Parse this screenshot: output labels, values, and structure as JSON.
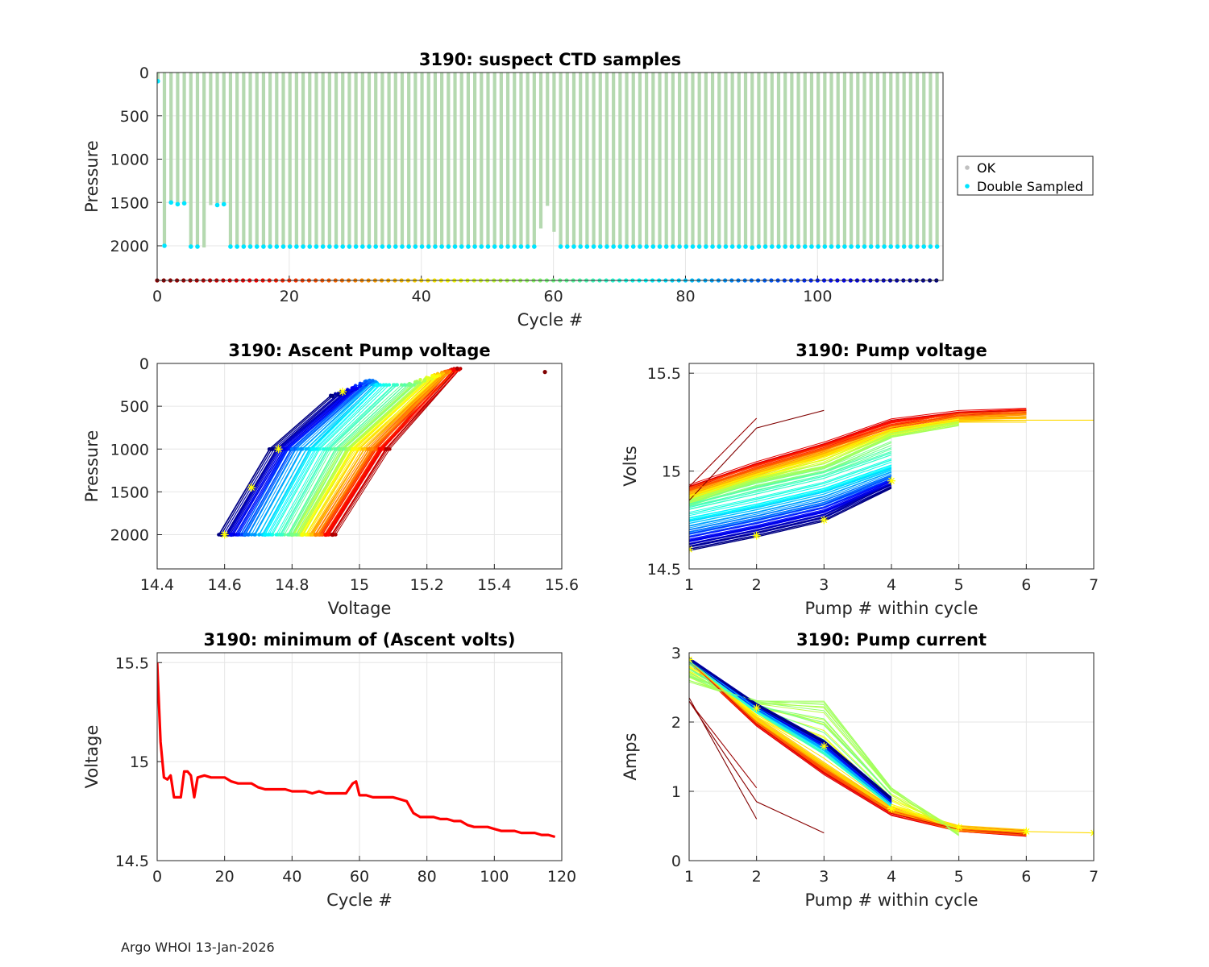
{
  "footer": "Argo WHOI 13-Jan-2026",
  "chart_data": [
    {
      "id": "ctd",
      "type": "scatter",
      "title": "3190: suspect CTD samples",
      "xlabel": "Cycle #",
      "ylabel": "Pressure",
      "xlim": [
        0,
        119
      ],
      "ylim": [
        0,
        2400
      ],
      "y_reversed": true,
      "xticks": [
        "0",
        "20",
        "40",
        "60",
        "80",
        "100"
      ],
      "yticks": [
        "0",
        "500",
        "1000",
        "1500",
        "2000"
      ],
      "legend": {
        "placement": "outside-right",
        "entries": [
          {
            "label": "OK",
            "color": "#c0c0c0"
          },
          {
            "label": "Double Sampled",
            "color": "#00e5ff"
          }
        ]
      },
      "ok_profile_color": "#b5d9b0",
      "double_sampled_color": "#00e5ff",
      "profile_max_pressure": {
        "cycles": [
          0,
          1,
          2,
          3,
          4,
          5,
          6,
          7,
          8,
          9,
          10,
          11,
          12,
          13,
          14,
          15,
          16,
          17,
          18,
          19,
          20,
          21,
          22,
          23,
          24,
          25,
          26,
          27,
          28,
          29,
          30,
          31,
          32,
          33,
          34,
          35,
          36,
          37,
          38,
          39,
          40,
          41,
          42,
          43,
          44,
          45,
          46,
          47,
          48,
          49,
          50,
          51,
          52,
          53,
          54,
          55,
          56,
          57,
          58,
          59,
          60,
          61,
          62,
          63,
          64,
          65,
          66,
          67,
          68,
          69,
          70,
          71,
          72,
          73,
          74,
          75,
          76,
          77,
          78,
          79,
          80,
          81,
          82,
          83,
          84,
          85,
          86,
          87,
          88,
          89,
          90,
          91,
          92,
          93,
          94,
          95,
          96,
          97,
          98,
          99,
          100,
          101,
          102,
          103,
          104,
          105,
          106,
          107,
          108,
          109,
          110,
          111,
          112,
          113,
          114,
          115,
          116,
          117,
          118
        ],
        "pressure": [
          100,
          2000,
          1500,
          1520,
          1510,
          2010,
          2010,
          2020,
          1530,
          1530,
          1520,
          2010,
          2010,
          2010,
          2010,
          2010,
          2010,
          2010,
          2010,
          2010,
          2010,
          2010,
          2010,
          2010,
          2010,
          2010,
          2010,
          2010,
          2010,
          2010,
          2010,
          2010,
          2010,
          2010,
          2010,
          2010,
          2010,
          2010,
          2010,
          2010,
          2010,
          2010,
          2010,
          2010,
          2010,
          2010,
          2010,
          2010,
          2010,
          2010,
          2010,
          2010,
          2010,
          2010,
          2010,
          2010,
          2010,
          2010,
          1800,
          1540,
          1840,
          2010,
          2010,
          2010,
          2010,
          2010,
          2010,
          2010,
          2010,
          2010,
          2010,
          2010,
          2010,
          2010,
          2010,
          2010,
          2010,
          2010,
          2010,
          2010,
          2010,
          2010,
          2010,
          2010,
          2010,
          2010,
          2010,
          2010,
          2010,
          2010,
          2020,
          2010,
          2010,
          2010,
          2010,
          2010,
          2010,
          2010,
          2010,
          2010,
          2010,
          2010,
          2010,
          2010,
          2010,
          2010,
          2010,
          2010,
          2010,
          2010,
          2010,
          2010,
          2010,
          2010,
          2010,
          2010,
          2010,
          2010,
          2010
        ],
        "double_sampled": [
          1,
          1,
          1,
          1,
          1,
          1,
          1,
          0,
          0,
          1,
          1,
          1,
          1,
          1,
          1,
          1,
          1,
          1,
          1,
          1,
          1,
          1,
          1,
          1,
          1,
          1,
          1,
          1,
          1,
          1,
          1,
          1,
          1,
          1,
          1,
          1,
          1,
          1,
          1,
          1,
          1,
          1,
          1,
          1,
          1,
          1,
          1,
          1,
          1,
          1,
          1,
          1,
          1,
          1,
          1,
          1,
          1,
          1,
          0,
          0,
          0,
          1,
          1,
          1,
          1,
          1,
          1,
          1,
          1,
          1,
          1,
          1,
          1,
          1,
          1,
          1,
          1,
          1,
          1,
          1,
          1,
          1,
          1,
          1,
          1,
          1,
          1,
          1,
          1,
          1,
          1,
          1,
          1,
          1,
          1,
          1,
          1,
          1,
          1,
          1,
          1,
          1,
          1,
          1,
          1,
          1,
          1,
          1,
          1,
          1,
          1,
          1,
          1,
          1,
          1,
          1,
          1,
          1,
          1
        ]
      },
      "cycle_marker_pressure": 2400
    },
    {
      "id": "ascent",
      "type": "line",
      "title": "3190: Ascent Pump voltage",
      "xlabel": "Voltage",
      "ylabel": "Pressure",
      "xlim": [
        14.4,
        15.6
      ],
      "ylim": [
        0,
        2400
      ],
      "y_reversed": true,
      "xticks": [
        "14.4",
        "14.6",
        "14.8",
        "15",
        "15.2",
        "15.4",
        "15.6"
      ],
      "yticks": [
        "0",
        "500",
        "1000",
        "1500",
        "2000"
      ],
      "series": [
        {
          "cycle": 0,
          "x": [
            15.55
          ],
          "y": [
            100
          ]
        },
        {
          "cycle": 5,
          "x": [
            14.92,
            15.08,
            15.29
          ],
          "y": [
            2000,
            1000,
            60
          ]
        },
        {
          "cycle": 15,
          "x": [
            14.9,
            15.06,
            15.28
          ],
          "y": [
            2000,
            1000,
            80
          ]
        },
        {
          "cycle": 30,
          "x": [
            14.87,
            15.03,
            15.26
          ],
          "y": [
            2000,
            1000,
            100
          ]
        },
        {
          "cycle": 45,
          "x": [
            14.83,
            14.98,
            15.22
          ],
          "y": [
            2000,
            1000,
            150
          ]
        },
        {
          "cycle": 60,
          "x": [
            14.8,
            14.94,
            15.15
          ],
          "y": [
            2000,
            1000,
            250
          ]
        },
        {
          "cycle": 75,
          "x": [
            14.72,
            14.86,
            15.05
          ],
          "y": [
            2000,
            1000,
            250
          ]
        },
        {
          "cycle": 90,
          "x": [
            14.66,
            14.8,
            15.03
          ],
          "y": [
            2000,
            1000,
            200
          ]
        },
        {
          "cycle": 105,
          "x": [
            14.62,
            14.77,
            14.98
          ],
          "y": [
            2000,
            1000,
            300
          ]
        },
        {
          "cycle": 118,
          "x": [
            14.59,
            14.74,
            14.92
          ],
          "y": [
            2000,
            1000,
            380
          ]
        }
      ],
      "yellow_markers": {
        "x": [
          14.6,
          14.68,
          14.76,
          14.95
        ],
        "y": [
          2000,
          1450,
          1000,
          330
        ]
      }
    },
    {
      "id": "pumpv",
      "type": "line",
      "title": "3190: Pump voltage",
      "xlabel": "Pump # within cycle",
      "ylabel": "Volts",
      "xlim": [
        1,
        7
      ],
      "ylim": [
        14.5,
        15.55
      ],
      "xticks": [
        "1",
        "2",
        "3",
        "4",
        "5",
        "6",
        "7"
      ],
      "yticks": [
        "14.5",
        "15",
        "15.5"
      ],
      "series": [
        {
          "cycle": 0,
          "x": [
            1,
            2,
            3
          ],
          "y": [
            14.85,
            15.22,
            15.31
          ]
        },
        {
          "cycle": 3,
          "x": [
            1,
            2
          ],
          "y": [
            14.92,
            15.27
          ]
        },
        {
          "cycle": 10,
          "x": [
            1,
            2,
            3,
            4,
            5,
            6
          ],
          "y": [
            14.92,
            15.04,
            15.14,
            15.26,
            15.3,
            15.31
          ]
        },
        {
          "cycle": 25,
          "x": [
            1,
            2,
            3,
            4,
            5,
            6
          ],
          "y": [
            14.9,
            15.01,
            15.11,
            15.22,
            15.28,
            15.3
          ]
        },
        {
          "cycle": 40,
          "x": [
            1,
            2,
            3,
            4,
            5,
            6,
            7
          ],
          "y": [
            14.87,
            14.98,
            15.08,
            15.21,
            15.26,
            15.26,
            15.26
          ]
        },
        {
          "cycle": 55,
          "x": [
            1,
            2,
            3,
            4,
            5
          ],
          "y": [
            14.84,
            14.95,
            15.02,
            15.18,
            15.24
          ]
        },
        {
          "cycle": 65,
          "x": [
            1,
            2,
            3,
            4
          ],
          "y": [
            14.82,
            14.9,
            14.98,
            15.1
          ]
        },
        {
          "cycle": 75,
          "x": [
            1,
            2,
            3,
            4
          ],
          "y": [
            14.75,
            14.82,
            14.9,
            15.02
          ]
        },
        {
          "cycle": 90,
          "x": [
            1,
            2,
            3,
            4
          ],
          "y": [
            14.69,
            14.76,
            14.84,
            14.97
          ]
        },
        {
          "cycle": 105,
          "x": [
            1,
            2,
            3,
            4
          ],
          "y": [
            14.64,
            14.71,
            14.79,
            14.94
          ]
        },
        {
          "cycle": 118,
          "x": [
            1,
            2,
            3,
            4
          ],
          "y": [
            14.6,
            14.67,
            14.75,
            14.92
          ]
        }
      ],
      "yellow_markers": {
        "x": [
          1,
          2,
          3,
          4
        ],
        "y": [
          14.6,
          14.67,
          14.75,
          14.95
        ]
      }
    },
    {
      "id": "minv",
      "type": "line",
      "title": "3190: minimum of (Ascent volts)",
      "xlabel": "Cycle #",
      "ylabel": "Voltage",
      "xlim": [
        0,
        120
      ],
      "ylim": [
        14.5,
        15.55
      ],
      "xticks": [
        "0",
        "20",
        "40",
        "60",
        "80",
        "100",
        "120"
      ],
      "yticks": [
        "14.5",
        "15",
        "15.5"
      ],
      "series": [
        {
          "name": "min ascent volts",
          "color": "#ff0000",
          "x": [
            0,
            1,
            2,
            3,
            4,
            5,
            6,
            7,
            8,
            9,
            10,
            11,
            12,
            14,
            16,
            18,
            20,
            22,
            24,
            26,
            28,
            30,
            32,
            34,
            36,
            38,
            40,
            42,
            44,
            46,
            48,
            50,
            52,
            54,
            56,
            58,
            59,
            60,
            62,
            64,
            66,
            68,
            70,
            72,
            74,
            76,
            78,
            80,
            82,
            84,
            86,
            88,
            90,
            92,
            94,
            96,
            98,
            100,
            102,
            104,
            106,
            108,
            110,
            112,
            114,
            116,
            118
          ],
          "y": [
            15.5,
            15.1,
            14.92,
            14.91,
            14.93,
            14.82,
            14.82,
            14.82,
            14.95,
            14.95,
            14.93,
            14.82,
            14.92,
            14.93,
            14.92,
            14.92,
            14.92,
            14.9,
            14.89,
            14.89,
            14.89,
            14.87,
            14.86,
            14.86,
            14.86,
            14.86,
            14.85,
            14.85,
            14.85,
            14.84,
            14.85,
            14.84,
            14.84,
            14.84,
            14.84,
            14.89,
            14.9,
            14.83,
            14.83,
            14.82,
            14.82,
            14.82,
            14.82,
            14.81,
            14.8,
            14.74,
            14.72,
            14.72,
            14.72,
            14.71,
            14.71,
            14.7,
            14.7,
            14.68,
            14.67,
            14.67,
            14.67,
            14.66,
            14.65,
            14.65,
            14.65,
            14.64,
            14.64,
            14.64,
            14.63,
            14.63,
            14.62
          ]
        }
      ]
    },
    {
      "id": "pumpc",
      "type": "line",
      "title": "3190: Pump current",
      "xlabel": "Pump # within cycle",
      "ylabel": "Amps",
      "xlim": [
        1,
        7
      ],
      "ylim": [
        0,
        3
      ],
      "xticks": [
        "1",
        "2",
        "3",
        "4",
        "5",
        "6",
        "7"
      ],
      "yticks": [
        "0",
        "1",
        "2",
        "3"
      ],
      "series": [
        {
          "cycle": 0,
          "x": [
            1,
            2
          ],
          "y": [
            2.35,
            0.6
          ]
        },
        {
          "cycle": 1,
          "x": [
            1,
            2,
            3
          ],
          "y": [
            2.3,
            0.85,
            0.4
          ]
        },
        {
          "cycle": 3,
          "x": [
            1,
            2
          ],
          "y": [
            2.3,
            1.05
          ]
        },
        {
          "cycle": 10,
          "x": [
            1,
            2,
            3,
            4,
            5,
            6
          ],
          "y": [
            2.88,
            1.97,
            1.27,
            0.68,
            0.45,
            0.38
          ]
        },
        {
          "cycle": 25,
          "x": [
            1,
            2,
            3,
            4,
            5,
            6
          ],
          "y": [
            2.88,
            2.0,
            1.33,
            0.72,
            0.45,
            0.4
          ]
        },
        {
          "cycle": 40,
          "x": [
            1,
            2,
            3,
            4,
            5,
            6,
            7
          ],
          "y": [
            2.88,
            2.05,
            1.4,
            0.75,
            0.48,
            0.42,
            0.4
          ]
        },
        {
          "cycle": 55,
          "x": [
            1,
            2,
            3,
            4,
            5
          ],
          "y": [
            2.6,
            2.3,
            2.3,
            1.05,
            0.38
          ]
        },
        {
          "cycle": 65,
          "x": [
            1,
            2,
            3,
            4
          ],
          "y": [
            2.88,
            2.15,
            1.55,
            0.8
          ]
        },
        {
          "cycle": 80,
          "x": [
            1,
            2,
            3,
            4
          ],
          "y": [
            2.9,
            2.2,
            1.62,
            0.82
          ]
        },
        {
          "cycle": 100,
          "x": [
            1,
            2,
            3,
            4
          ],
          "y": [
            2.9,
            2.22,
            1.68,
            0.85
          ]
        },
        {
          "cycle": 118,
          "x": [
            1,
            2,
            3,
            4
          ],
          "y": [
            2.9,
            2.25,
            1.72,
            0.9
          ]
        }
      ],
      "yellow_markers": {
        "x": [
          1,
          2,
          3,
          4,
          5,
          6,
          7
        ],
        "y": [
          2.9,
          2.2,
          1.65,
          0.75,
          0.48,
          0.42,
          0.4
        ]
      }
    }
  ]
}
